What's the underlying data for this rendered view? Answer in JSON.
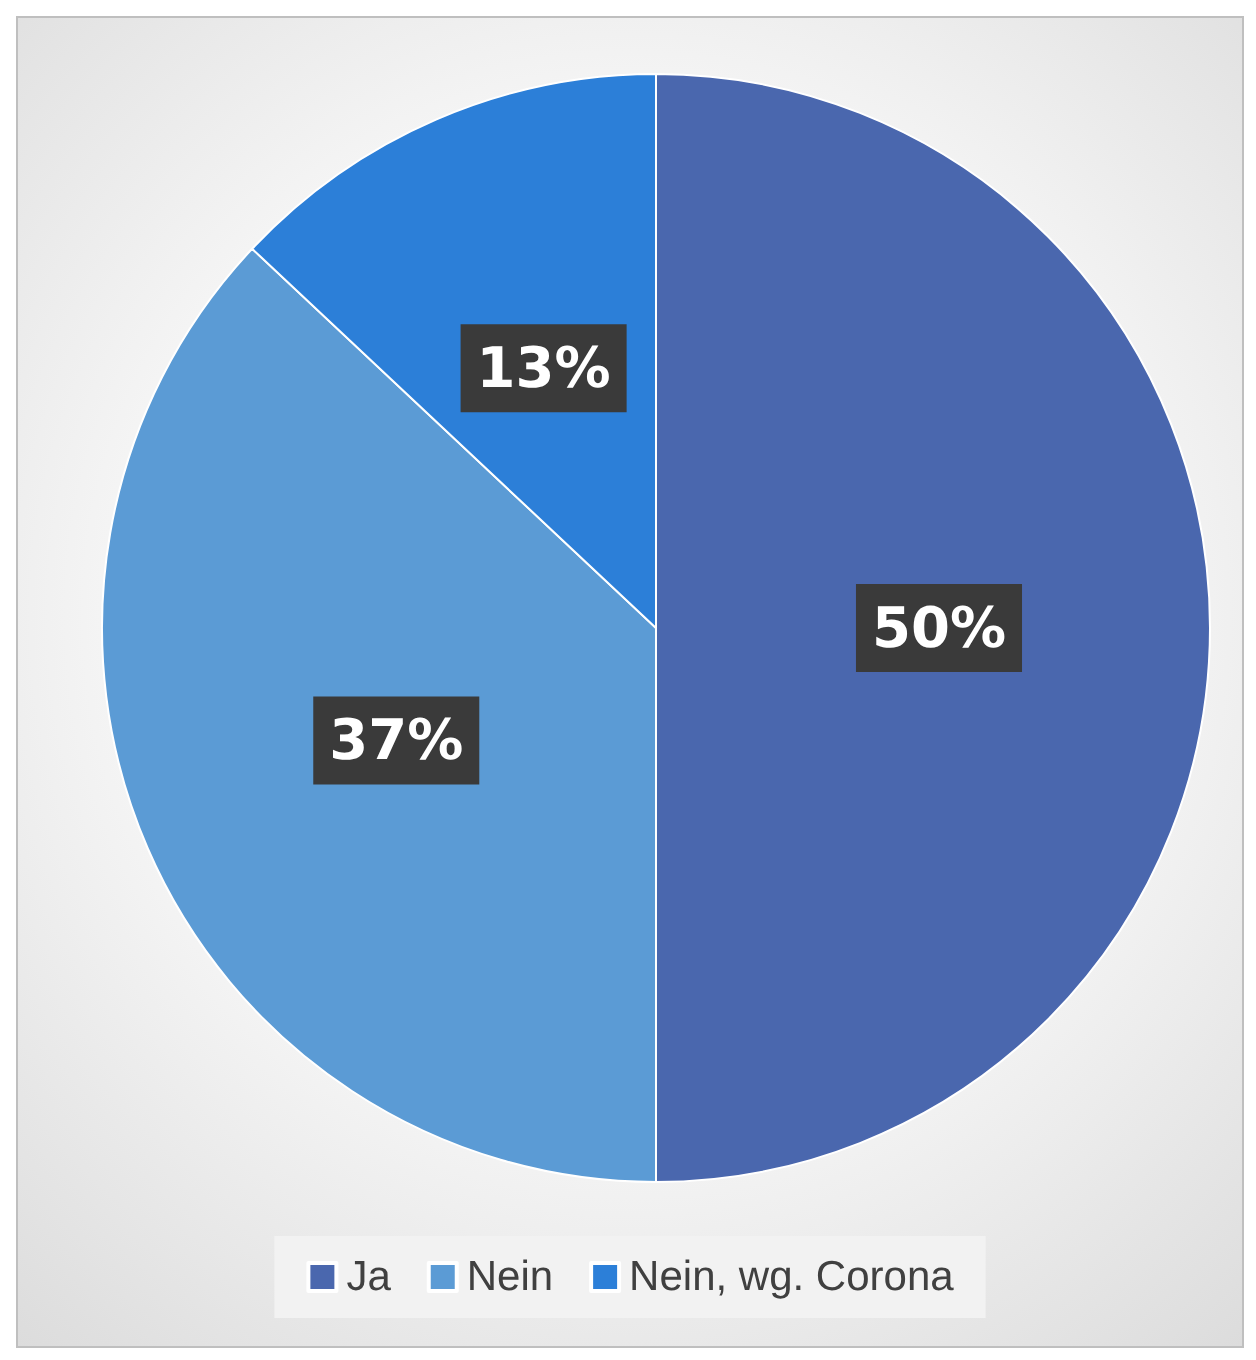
{
  "chart_data": {
    "type": "pie",
    "categories": [
      "Ja",
      "Nein",
      "Nein, wg. Corona"
    ],
    "values": [
      50,
      37,
      13
    ],
    "colors": [
      "#4a67ae",
      "#5b9bd5",
      "#2c7fd8"
    ],
    "value_labels": [
      "50%",
      "37%",
      "13%"
    ],
    "legend": "bottom"
  }
}
